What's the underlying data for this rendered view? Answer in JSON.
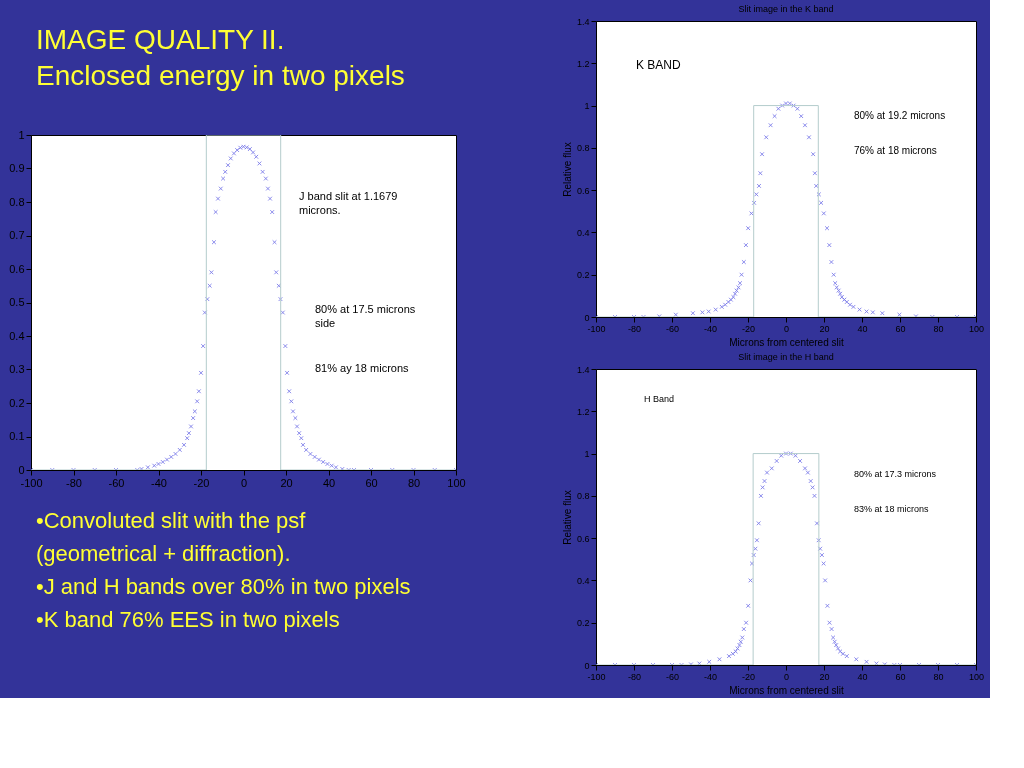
{
  "chart_data": [
    {
      "type": "other",
      "title": "IMAGE QUALITY II.",
      "subtitle": "Enclosed energy in two pixels"
    },
    {
      "type": "scatter",
      "xlim": [
        -100,
        100
      ],
      "xticks": [
        -100,
        -80,
        -60,
        -40,
        -20,
        0,
        20,
        40,
        60,
        80,
        100
      ],
      "ylim": [
        0,
        1
      ],
      "yticks": [
        0,
        0.1,
        0.2,
        0.3,
        0.4,
        0.5,
        0.6,
        0.7,
        0.8,
        0.9,
        1
      ],
      "annotations": [
        "J band slit at 1.1679 microns.",
        "80% at 17.5 microns side",
        "81% ay 18 microns"
      ],
      "series": [
        {
          "type": "scatter",
          "marker": "cross",
          "color": "#4646e0",
          "x": [
            -100,
            -90,
            -80,
            -70,
            -60,
            -50,
            -48,
            -45,
            -42,
            -40,
            -38,
            -36,
            -34,
            -32,
            -30,
            -28,
            -26.5,
            -25.7,
            -24.7,
            -23.7,
            -22.9,
            -21.8,
            -21,
            -20,
            -19,
            -18.2,
            -17,
            -15.9,
            -15.1,
            -13.9,
            -13.1,
            -12,
            -10.7,
            -9.6,
            -8.6,
            -7.3,
            -6,
            -4.5,
            -3,
            -1.5,
            0,
            1.5,
            3,
            4.5,
            6,
            7.5,
            9,
            10.5,
            11.5,
            12.5,
            13.5,
            14.6,
            15.4,
            16.6,
            17.4,
            18.5,
            19.7,
            20.5,
            21.5,
            22.5,
            23.3,
            24.4,
            25.2,
            26.2,
            27.2,
            28,
            29.5,
            31.5,
            33.5,
            35.5,
            37.5,
            39.5,
            41.5,
            43.5,
            46.5,
            49.5,
            52,
            60,
            70,
            80,
            90,
            100
          ],
          "values": [
            0,
            0,
            0,
            0,
            0,
            0,
            0.003,
            0.008,
            0.013,
            0.018,
            0.024,
            0.031,
            0.039,
            0.048,
            0.06,
            0.075,
            0.095,
            0.11,
            0.13,
            0.155,
            0.175,
            0.205,
            0.235,
            0.29,
            0.37,
            0.47,
            0.51,
            0.55,
            0.59,
            0.68,
            0.77,
            0.81,
            0.84,
            0.87,
            0.89,
            0.91,
            0.93,
            0.945,
            0.955,
            0.962,
            0.965,
            0.963,
            0.958,
            0.948,
            0.935,
            0.915,
            0.89,
            0.87,
            0.84,
            0.81,
            0.77,
            0.68,
            0.59,
            0.55,
            0.51,
            0.47,
            0.37,
            0.29,
            0.235,
            0.205,
            0.175,
            0.155,
            0.13,
            0.11,
            0.095,
            0.075,
            0.06,
            0.048,
            0.039,
            0.031,
            0.024,
            0.018,
            0.013,
            0.008,
            0.003,
            0,
            0,
            0,
            0,
            0,
            0,
            0
          ]
        },
        {
          "type": "line",
          "color": "#b4cccc",
          "x": [
            -100,
            -17.5,
            -17.5,
            17.5,
            17.5,
            100
          ],
          "values": [
            0,
            0,
            1,
            1,
            0,
            0
          ]
        }
      ]
    },
    {
      "type": "other",
      "annotations": [
        "•Convoluted slit with the psf (geometrical + diffraction).",
        "•J and H bands over 80% in two pixels",
        "•K band 76% EES in two pixels"
      ]
    },
    {
      "type": "scatter",
      "title": "Slit image in the K band",
      "xlabel": "Microns from centered slit",
      "ylabel": "Relative flux",
      "xlim": [
        -100,
        100
      ],
      "xticks": [
        -100,
        -80,
        -60,
        -40,
        -20,
        0,
        20,
        40,
        60,
        80,
        100
      ],
      "ylim": [
        0,
        1.4
      ],
      "yticks": [
        0,
        0.2,
        0.4,
        0.6,
        0.8,
        1,
        1.2,
        1.4
      ],
      "annotations": [
        "K BAND",
        "80% at 19.2 microns",
        "76% at 18 microns"
      ],
      "series": [
        {
          "type": "scatter",
          "marker": "cross",
          "color": "#4646e0",
          "x": [
            -100,
            -90,
            -80,
            -75,
            -66.7,
            -58,
            -49,
            -44,
            -40.7,
            -37,
            -33.8,
            -32,
            -30.3,
            -29,
            -27.7,
            -26.8,
            -26,
            -25,
            -24.2,
            -23.4,
            -22.2,
            -21.1,
            -19.9,
            -18.2,
            -16.8,
            -15.6,
            -14.2,
            -13.5,
            -12.6,
            -10.4,
            -8.1,
            -6,
            -4,
            -2,
            0,
            2,
            4,
            6,
            8,
            10,
            12.1,
            14.3,
            15.2,
            15.9,
            17.3,
            18.5,
            19.9,
            21.6,
            22.8,
            23.9,
            25.1,
            25.9,
            26.7,
            27.7,
            28.5,
            29.4,
            30.7,
            32,
            33.7,
            35.5,
            38.7,
            42.4,
            45.7,
            50.7,
            59.7,
            68.4,
            77,
            90,
            100
          ],
          "values": [
            0,
            0,
            0,
            0,
            0.003,
            0.011,
            0.018,
            0.022,
            0.026,
            0.035,
            0.048,
            0.058,
            0.071,
            0.082,
            0.094,
            0.11,
            0.125,
            0.14,
            0.16,
            0.2,
            0.26,
            0.34,
            0.42,
            0.49,
            0.54,
            0.58,
            0.62,
            0.68,
            0.77,
            0.85,
            0.907,
            0.95,
            0.985,
            1.0,
            1.01,
            1.01,
            1.0,
            0.985,
            0.95,
            0.907,
            0.85,
            0.77,
            0.68,
            0.62,
            0.58,
            0.54,
            0.49,
            0.42,
            0.34,
            0.26,
            0.2,
            0.16,
            0.14,
            0.125,
            0.11,
            0.094,
            0.082,
            0.071,
            0.058,
            0.048,
            0.035,
            0.026,
            0.022,
            0.018,
            0.011,
            0.003,
            0,
            0,
            0
          ]
        },
        {
          "type": "line",
          "color": "#b4cccc",
          "x": [
            -100,
            -17,
            -17,
            17,
            17,
            100
          ],
          "values": [
            0,
            0,
            1,
            1,
            0,
            0
          ]
        }
      ]
    },
    {
      "type": "scatter",
      "title": "Slit image in the H band",
      "xlabel": "Microns from centered slit",
      "ylabel": "Relative flux",
      "xlim": [
        -100,
        100
      ],
      "xticks": [
        -100,
        -80,
        -60,
        -40,
        -20,
        0,
        20,
        40,
        60,
        80,
        100
      ],
      "ylim": [
        0,
        1.4
      ],
      "yticks": [
        0,
        0.2,
        0.4,
        0.6,
        0.8,
        1,
        1.2,
        1.4
      ],
      "annotations": [
        "H Band",
        "80% at 17.3 microns",
        "83% at 18 microns"
      ],
      "series": [
        {
          "type": "scatter",
          "marker": "cross",
          "color": "#4646e0",
          "x": [
            -100,
            -90,
            -80,
            -70,
            -60,
            -55,
            -50,
            -45.6,
            -40.4,
            -35,
            -30,
            -28,
            -26.5,
            -25.5,
            -24.5,
            -23.8,
            -23,
            -22.2,
            -21,
            -19.9,
            -18.7,
            -17.9,
            -17,
            -16.1,
            -15.3,
            -14.4,
            -13.2,
            -12.3,
            -11.3,
            -10,
            -7.5,
            -4.9,
            -2.5,
            0,
            2.5,
            5,
            7.4,
            10,
            11.5,
            13,
            14,
            15,
            16.3,
            17.2,
            18,
            18.9,
            19.8,
            20.6,
            21.8,
            22.9,
            24,
            24.8,
            25.6,
            26.4,
            27.4,
            28.5,
            30,
            32,
            37,
            42.4,
            47.6,
            52,
            57,
            60,
            70,
            80,
            90,
            100
          ],
          "values": [
            0,
            0,
            0,
            0,
            0,
            0,
            0.003,
            0.007,
            0.015,
            0.027,
            0.042,
            0.053,
            0.064,
            0.078,
            0.094,
            0.11,
            0.13,
            0.17,
            0.2,
            0.28,
            0.4,
            0.48,
            0.52,
            0.55,
            0.59,
            0.67,
            0.8,
            0.84,
            0.87,
            0.91,
            0.93,
            0.965,
            0.99,
            1.0,
            1.0,
            0.99,
            0.965,
            0.93,
            0.91,
            0.87,
            0.84,
            0.8,
            0.67,
            0.59,
            0.55,
            0.52,
            0.48,
            0.4,
            0.28,
            0.2,
            0.17,
            0.13,
            0.11,
            0.094,
            0.078,
            0.064,
            0.053,
            0.042,
            0.027,
            0.015,
            0.007,
            0.003,
            0,
            0,
            0,
            0,
            0,
            0
          ]
        },
        {
          "type": "line",
          "color": "#b4cccc",
          "x": [
            -100,
            -17.3,
            -17.3,
            17.3,
            17.3,
            100
          ],
          "values": [
            0,
            0,
            1,
            1,
            0,
            0
          ]
        }
      ]
    }
  ]
}
